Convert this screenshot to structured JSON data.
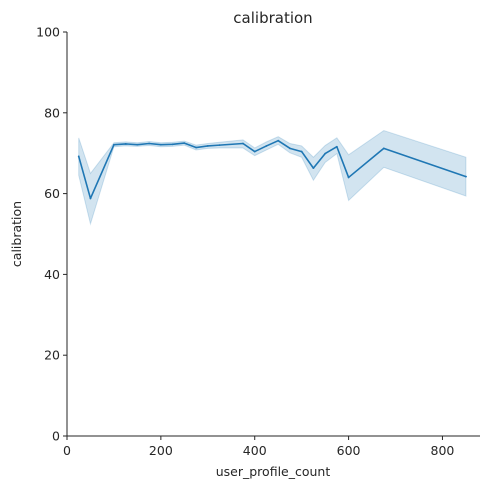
{
  "chart_data": {
    "type": "line",
    "title": "calibration",
    "xlabel": "user_profile_count",
    "ylabel": "calibration",
    "xlim": [
      0,
      880
    ],
    "ylim": [
      0,
      100
    ],
    "xticks": [
      0,
      200,
      400,
      600,
      800
    ],
    "yticks": [
      0,
      20,
      40,
      60,
      80,
      100
    ],
    "grid": false,
    "series": [
      {
        "color": "#1f77b4",
        "band_color": "#1f77b4",
        "points": [
          {
            "x": 25,
            "y": 69.2,
            "lo": 64.5,
            "hi": 73.8
          },
          {
            "x": 50,
            "y": 58.8,
            "lo": 52.5,
            "hi": 65.0
          },
          {
            "x": 100,
            "y": 72.1,
            "lo": 71.6,
            "hi": 72.6
          },
          {
            "x": 125,
            "y": 72.3,
            "lo": 71.8,
            "hi": 72.8
          },
          {
            "x": 150,
            "y": 72.1,
            "lo": 71.7,
            "hi": 72.6
          },
          {
            "x": 175,
            "y": 72.4,
            "lo": 71.9,
            "hi": 72.9
          },
          {
            "x": 200,
            "y": 72.1,
            "lo": 71.6,
            "hi": 72.6
          },
          {
            "x": 225,
            "y": 72.2,
            "lo": 71.7,
            "hi": 72.7
          },
          {
            "x": 250,
            "y": 72.5,
            "lo": 72.0,
            "hi": 73.0
          },
          {
            "x": 275,
            "y": 71.4,
            "lo": 70.8,
            "hi": 72.0
          },
          {
            "x": 300,
            "y": 71.8,
            "lo": 71.2,
            "hi": 72.4
          },
          {
            "x": 325,
            "y": 72.0,
            "lo": 71.3,
            "hi": 72.7
          },
          {
            "x": 375,
            "y": 72.4,
            "lo": 71.3,
            "hi": 73.3
          },
          {
            "x": 400,
            "y": 70.4,
            "lo": 69.4,
            "hi": 71.3
          },
          {
            "x": 425,
            "y": 71.8,
            "lo": 70.8,
            "hi": 72.8
          },
          {
            "x": 450,
            "y": 73.1,
            "lo": 72.2,
            "hi": 74.1
          },
          {
            "x": 475,
            "y": 71.2,
            "lo": 70.1,
            "hi": 72.4
          },
          {
            "x": 500,
            "y": 70.4,
            "lo": 69.0,
            "hi": 71.8
          },
          {
            "x": 525,
            "y": 66.3,
            "lo": 63.3,
            "hi": 69.0
          },
          {
            "x": 550,
            "y": 69.9,
            "lo": 67.7,
            "hi": 71.9
          },
          {
            "x": 575,
            "y": 71.6,
            "lo": 69.9,
            "hi": 73.8
          },
          {
            "x": 600,
            "y": 64.0,
            "lo": 58.3,
            "hi": 69.6
          },
          {
            "x": 675,
            "y": 71.2,
            "lo": 66.5,
            "hi": 75.6
          },
          {
            "x": 850,
            "y": 64.2,
            "lo": 59.4,
            "hi": 69.0
          }
        ]
      }
    ]
  }
}
